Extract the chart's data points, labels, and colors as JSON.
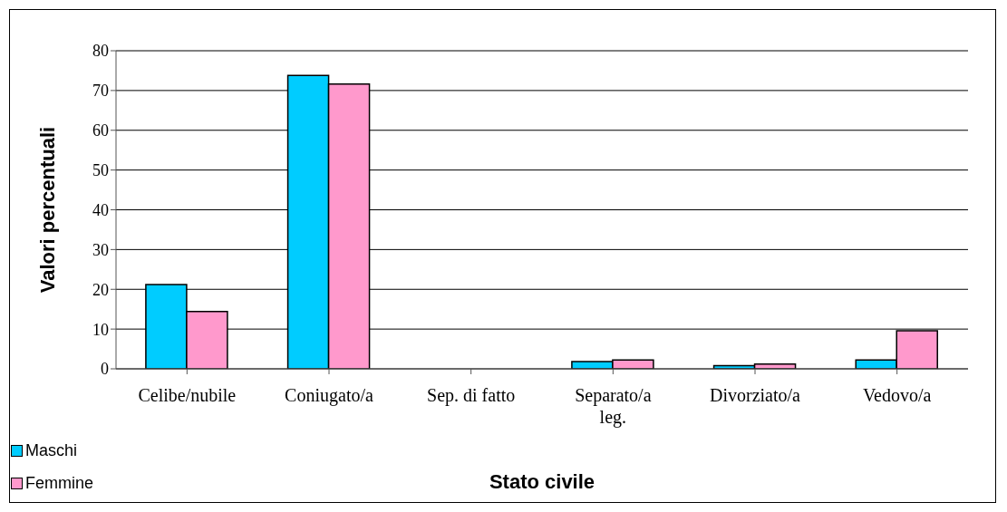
{
  "chart_data": {
    "type": "bar",
    "xlabel": "Stato civile",
    "ylabel": "Valori percentuali",
    "categories": [
      "Celibe/nubile",
      "Coniugato/a",
      "Sep. di fatto",
      "Separato/a leg.",
      "Divorziato/a",
      "Vedovo/a"
    ],
    "series": [
      {
        "name": "Maschi",
        "color": "#00ccff",
        "values": [
          21.2,
          73.8,
          null,
          1.8,
          0.8,
          2.2
        ]
      },
      {
        "name": "Femmine",
        "color": "#ff99cc",
        "values": [
          14.4,
          71.6,
          null,
          2.2,
          1.2,
          9.6
        ]
      }
    ],
    "ylim": [
      0,
      80
    ],
    "yticks": [
      0,
      10,
      20,
      30,
      40,
      50,
      60,
      70,
      80
    ],
    "grid": "y",
    "legend": "bottom left"
  }
}
